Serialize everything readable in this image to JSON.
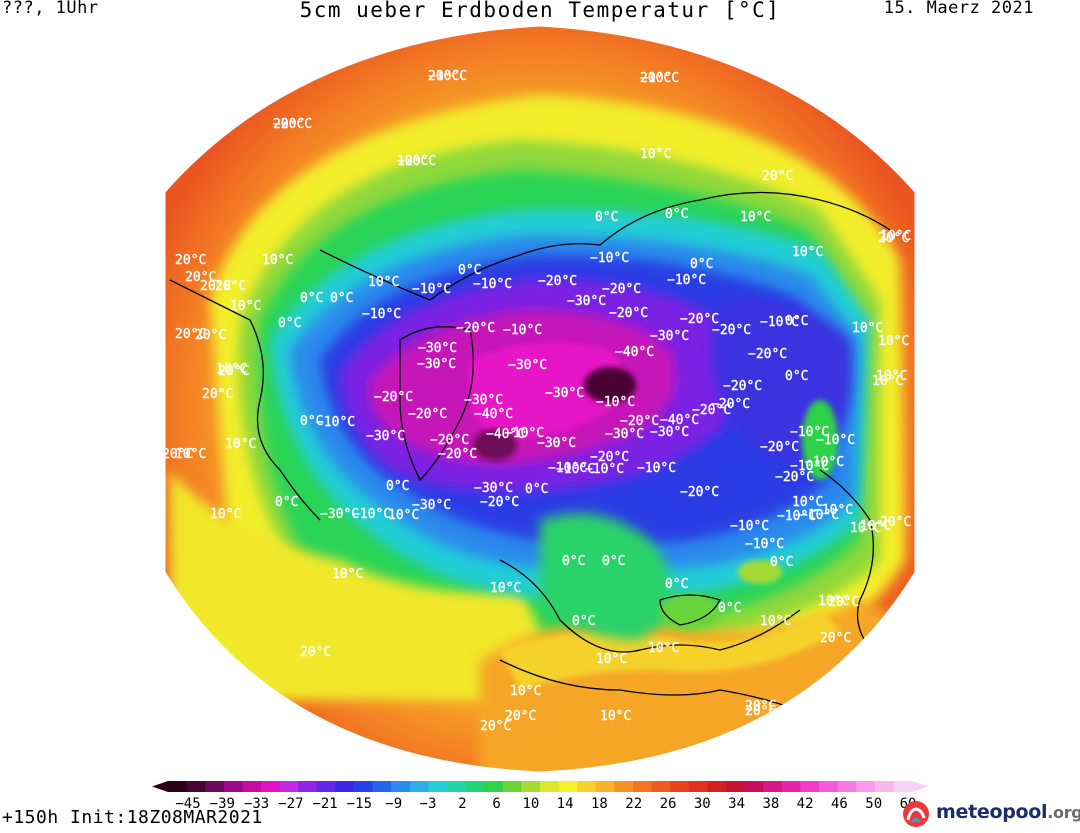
{
  "header": {
    "left": "???, 1Uhr",
    "title": "5cm ueber Erdboden Temperatur [°C]",
    "date": "15. Maerz 2021"
  },
  "footer": {
    "run": "+150h Init:18Z08MAR2021"
  },
  "logo": {
    "name": "meteopool",
    "tld": ".org",
    "icon": "meteopool-logo-icon"
  },
  "legend": {
    "labels": [
      "-45",
      "-39",
      "-33",
      "-27",
      "-21",
      "-15",
      "-9",
      "-3",
      "2",
      "6",
      "10",
      "14",
      "18",
      "22",
      "26",
      "30",
      "34",
      "38",
      "42",
      "46",
      "50",
      "60"
    ],
    "colors": [
      "#2b0019",
      "#4a0433",
      "#6e0a58",
      "#9a0c86",
      "#c20ea4",
      "#e211c3",
      "#c32ae0",
      "#8f24e6",
      "#6126e6",
      "#3c28e2",
      "#2343e6",
      "#2565ec",
      "#2b8aec",
      "#2cb0ea",
      "#25cfd8",
      "#22d6a8",
      "#22d678",
      "#2fd24a",
      "#6ad43a",
      "#a6dc34",
      "#dde62e",
      "#f3f02c",
      "#f6d22a",
      "#f8b328",
      "#f69226",
      "#f47424",
      "#ee5a22",
      "#e8431f",
      "#e0301e",
      "#d2201e",
      "#c41530",
      "#c8105a",
      "#d61a84",
      "#e626a8",
      "#f03cc8",
      "#f55ad8",
      "#f77ae2",
      "#f89be8",
      "#f8b8ee",
      "#f8d2f4"
    ]
  },
  "map": {
    "projection": "north-polar-stereographic",
    "contour_labels": [
      "20°C",
      "20°C",
      "20°C",
      "10°C",
      "10°C",
      "20°C",
      "10°C",
      "20°C",
      "20°C",
      "20°C",
      "0°C",
      "0°C",
      "10°C",
      "10°C",
      "20°C",
      "20°C",
      "20°C",
      "10°C",
      "10°C",
      "0°C",
      "0°C",
      "0°C",
      "10°C",
      "10°C",
      "0°C",
      "0°C",
      "0°C",
      "0°C",
      "0°C",
      "0°C",
      "10°C",
      "10°C",
      "10°C",
      "10°C",
      "0°C",
      "0°C",
      "10°C",
      "0°C",
      "10°C",
      "10°C",
      "10°C",
      "10°C",
      "20°C",
      "0°C",
      "0°C",
      "10°C",
      "20°C",
      "10°C",
      "0°C",
      "20°C",
      "10°C",
      "0°C",
      "0°C",
      "20°C",
      "10°C",
      "20°C",
      "10°C",
      "20°C",
      "20°C",
      "20°C",
      "10°C",
      "20°C",
      "10°C",
      "10°C",
      "10°C",
      "20°C",
      "20°C",
      "20°C",
      "10°C",
      "−10°C",
      "−10°C",
      "−10°C",
      "−10°C",
      "−20°C",
      "−30°C",
      "−20°C",
      "−10°C",
      "−20°C",
      "−10°C",
      "−20°C",
      "−20°C",
      "−20°C",
      "−10°C",
      "−30°C",
      "−20°C",
      "−30°C",
      "−30°C",
      "−30°C",
      "−40°C",
      "−30°C",
      "−20°C",
      "−20°C",
      "−20°C",
      "−20°C",
      "−30°C",
      "−20°C",
      "−30°C",
      "−40°C",
      "−20°C",
      "−10°C",
      "−40°C",
      "−30°C",
      "−20°C",
      "−30°C",
      "−20°C",
      "−10°C",
      "−10°C",
      "−10°C",
      "−20°C",
      "−10°C",
      "−30°C",
      "−30°C",
      "−20°C",
      "−30°C",
      "−10°C",
      "−20°C",
      "−10°C",
      "−10°C",
      "−10°C",
      "−10°C",
      "−20°C",
      "−10°C",
      "−10°C",
      "−10°C",
      "−20°C",
      "−10°C",
      "−10°C",
      "−10°C",
      "−10°C",
      "−30°C",
      "−40°C",
      "−10°C",
      "−10°C",
      "−20°C",
      "−20°C"
    ]
  }
}
